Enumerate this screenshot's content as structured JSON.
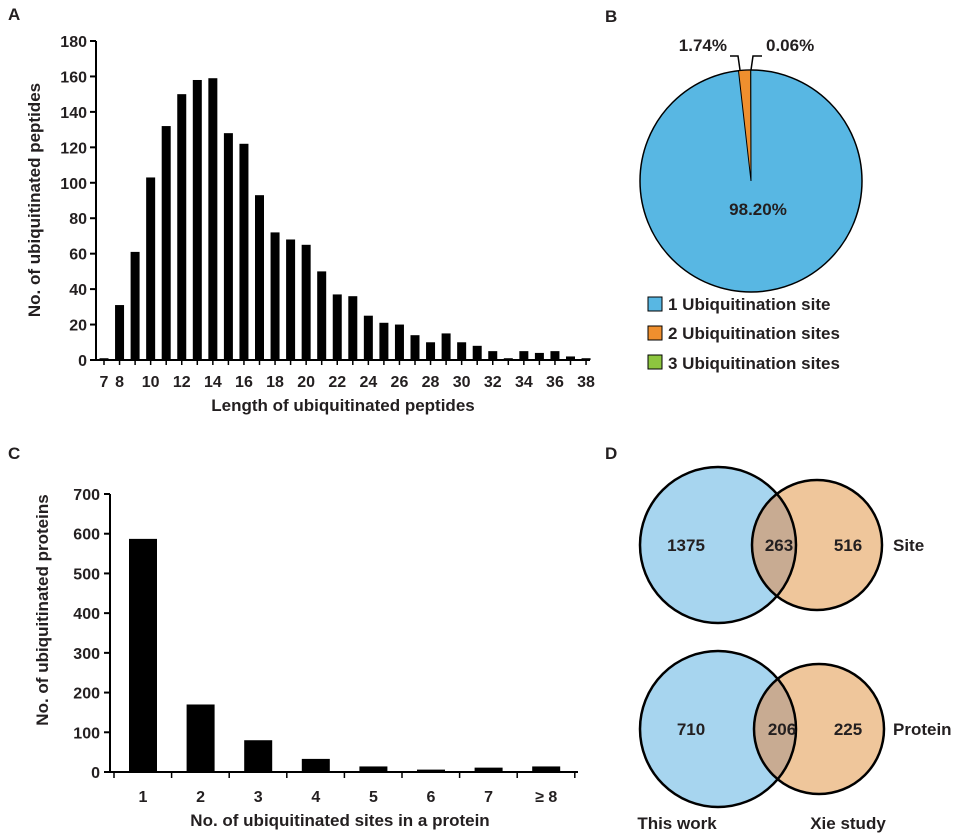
{
  "panels": {
    "a": "A",
    "b": "B",
    "c": "C",
    "d": "D"
  },
  "chart_data": [
    {
      "id": "A",
      "type": "bar",
      "xlabel": "Length of ubiquitinated peptides",
      "ylabel": "No. of ubiquitinated peptides",
      "categories": [
        7,
        8,
        9,
        10,
        11,
        12,
        13,
        14,
        15,
        16,
        17,
        18,
        19,
        20,
        21,
        22,
        23,
        24,
        25,
        26,
        27,
        28,
        29,
        30,
        31,
        32,
        33,
        34,
        35,
        36,
        37,
        38
      ],
      "tick_labels": [
        "7",
        "8",
        "10",
        "12",
        "14",
        "16",
        "18",
        "20",
        "22",
        "24",
        "26",
        "28",
        "30",
        "32",
        "34",
        "36",
        "38"
      ],
      "values": [
        1,
        31,
        61,
        103,
        132,
        150,
        158,
        159,
        128,
        122,
        93,
        72,
        68,
        65,
        50,
        37,
        36,
        25,
        21,
        20,
        14,
        10,
        15,
        10,
        8,
        5,
        1,
        5,
        4,
        5,
        2,
        1
      ],
      "ylim": [
        0,
        180
      ],
      "yticks": [
        0,
        20,
        40,
        60,
        80,
        100,
        120,
        140,
        160,
        180
      ]
    },
    {
      "id": "B",
      "type": "pie",
      "slices": [
        {
          "label": "1 Ubiquitination site",
          "value": 98.2,
          "text": "98.20%",
          "color": "#58b7e3"
        },
        {
          "label": "2 Ubiquitination sites",
          "value": 1.74,
          "text": "1.74%",
          "color": "#ef8f2e"
        },
        {
          "label": "3 Ubiquitination sites",
          "value": 0.06,
          "text": "0.06%",
          "color": "#8dc63f"
        }
      ]
    },
    {
      "id": "C",
      "type": "bar",
      "xlabel": "No. of ubiquitinated sites in a protein",
      "ylabel": "No. of ubiquitinated proteins",
      "categories": [
        "1",
        "2",
        "3",
        "4",
        "5",
        "6",
        "7",
        "≥ 8"
      ],
      "values": [
        587,
        170,
        80,
        33,
        14,
        6,
        11,
        14
      ],
      "ylim": [
        0,
        700
      ],
      "yticks": [
        0,
        100,
        200,
        300,
        400,
        500,
        600,
        700
      ]
    },
    {
      "id": "D",
      "type": "venn",
      "set_labels": [
        "This work",
        "Xie study"
      ],
      "colors": {
        "left": "#a7d5ef",
        "right": "#efc69b",
        "overlap": "#c8ab92"
      },
      "diagrams": [
        {
          "label": "Site",
          "left_only": "1375",
          "overlap": "263",
          "right_only": "516"
        },
        {
          "label": "Protein",
          "left_only": "710",
          "overlap": "206",
          "right_only": "225"
        }
      ]
    }
  ]
}
